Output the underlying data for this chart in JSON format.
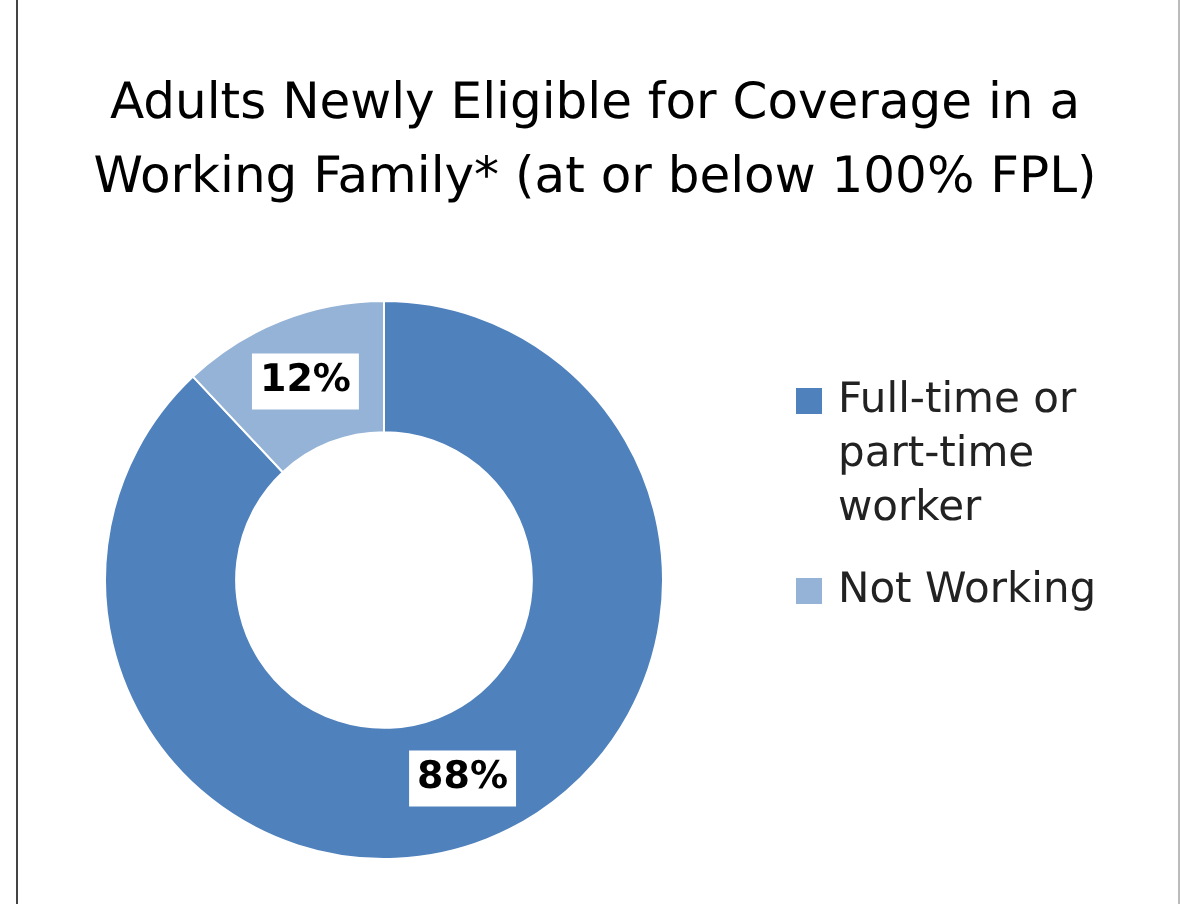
{
  "chart_data": {
    "type": "donut",
    "title": "Adults Newly Eligible for Coverage in a Working Family* (at or below 100% FPL)",
    "categories": [
      "Full-time or part-time worker",
      "Not Working"
    ],
    "values": [
      88,
      12
    ],
    "colors": [
      "#4f81bd",
      "#95b3d7"
    ],
    "value_labels": [
      "88%",
      "12%"
    ],
    "legend": "right"
  }
}
